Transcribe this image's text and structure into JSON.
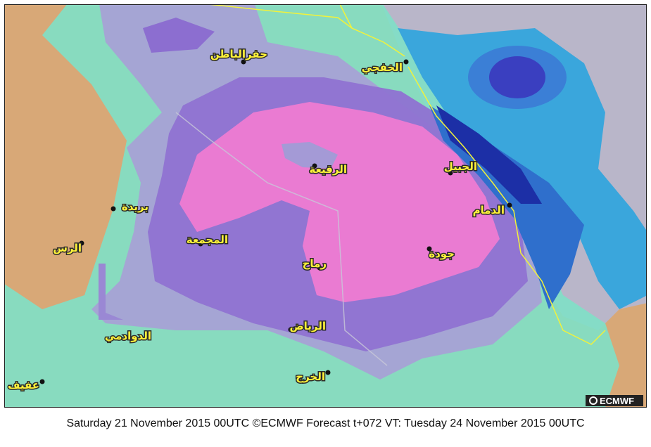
{
  "map": {
    "cities": [
      {
        "name": "حفرالباطن"
      },
      {
        "name": "الخفجي"
      },
      {
        "name": "الرقيعة"
      },
      {
        "name": "الجبيل"
      },
      {
        "name": "الدمام"
      },
      {
        "name": "بريدة"
      },
      {
        "name": "المجمعة"
      },
      {
        "name": "الرس"
      },
      {
        "name": "جودة"
      },
      {
        "name": "رماح"
      },
      {
        "name": "الرياض"
      },
      {
        "name": "الدوادمي"
      },
      {
        "name": "الخرج"
      },
      {
        "name": "عفيف"
      }
    ],
    "logo": "ECMWF",
    "caption": "Saturday 21 November 2015 00UTC ©ECMWF Forecast t+072 VT: Tuesday 24 November 2015 00UTC"
  }
}
